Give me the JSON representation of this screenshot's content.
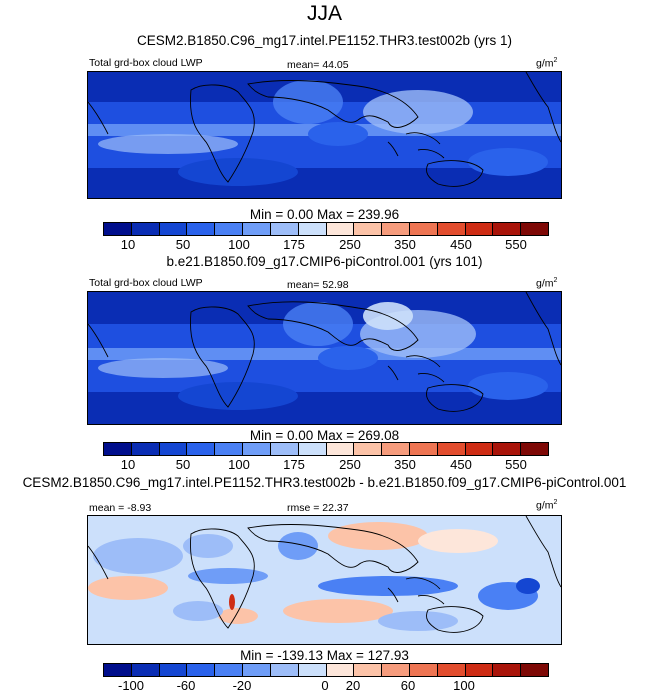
{
  "figure": {
    "season": "JJA"
  },
  "panels": [
    {
      "id": "model",
      "case_title": "CESM2.B1850.C96_mg17.intel.PE1152.THR3.test002b (yrs 1)",
      "left_label": "Total grd-box cloud LWP",
      "center_label": "mean=  44.05",
      "units": "g/m",
      "units_exp": "2",
      "min_max": "Min =   0.00 Max = 239.96",
      "colorbar": {
        "colors": [
          "#000e8c",
          "#0a2db4",
          "#1446d2",
          "#2a62eb",
          "#4a80f4",
          "#6f9df7",
          "#9dbdf8",
          "#cce0fb",
          "#fde6da",
          "#fcc3a8",
          "#f69c7d",
          "#ee7553",
          "#e24d2e",
          "#ce2c14",
          "#a9140a",
          "#7e0906"
        ],
        "ticks": [
          "10",
          "50",
          "100",
          "175",
          "250",
          "350",
          "450",
          "550"
        ]
      }
    },
    {
      "id": "control",
      "case_title": "b.e21.B1850.f09_g17.CMIP6-piControl.001 (yrs 101)",
      "left_label": "Total grd-box cloud LWP",
      "center_label": "mean=  52.98",
      "units": "g/m",
      "units_exp": "2",
      "min_max": "Min =   0.00 Max = 269.08",
      "colorbar": {
        "colors": [
          "#000e8c",
          "#0a2db4",
          "#1446d2",
          "#2a62eb",
          "#4a80f4",
          "#6f9df7",
          "#9dbdf8",
          "#cce0fb",
          "#fde6da",
          "#fcc3a8",
          "#f69c7d",
          "#ee7553",
          "#e24d2e",
          "#ce2c14",
          "#a9140a",
          "#7e0906"
        ],
        "ticks": [
          "10",
          "50",
          "100",
          "175",
          "250",
          "350",
          "450",
          "550"
        ]
      }
    },
    {
      "id": "difference",
      "case_title": "CESM2.B1850.C96_mg17.intel.PE1152.THR3.test002b - b.e21.B1850.f09_g17.CMIP6-piControl.001",
      "left_label": "mean =  -8.93",
      "center_label": "rmse =  22.37",
      "units": "g/m",
      "units_exp": "2",
      "min_max": "Min = -139.13 Max = 127.93",
      "colorbar": {
        "colors": [
          "#000e8c",
          "#0a2db4",
          "#1446d2",
          "#2a62eb",
          "#4a80f4",
          "#6f9df7",
          "#9dbdf8",
          "#cce0fb",
          "#fde6da",
          "#fcc3a8",
          "#f69c7d",
          "#ee7553",
          "#e24d2e",
          "#ce2c14",
          "#a9140a",
          "#7e0906"
        ],
        "ticks": [
          "-100",
          "-60",
          "-20",
          "0",
          "20",
          "60",
          "100"
        ]
      }
    }
  ]
}
